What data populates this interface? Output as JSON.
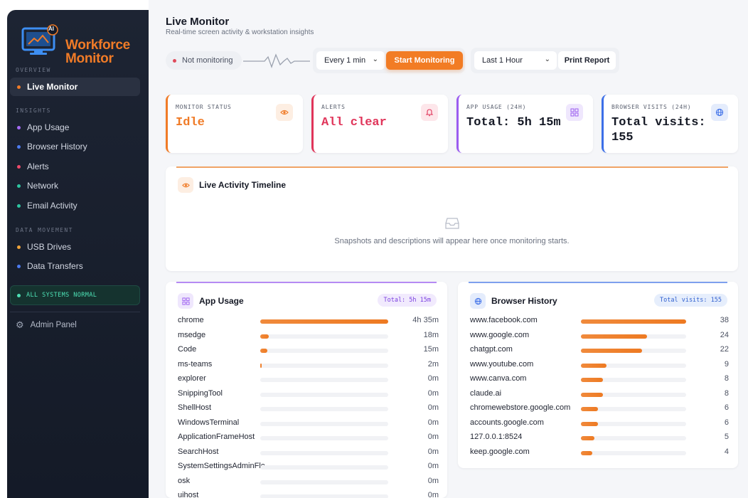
{
  "brand": {
    "line1": "Workforce",
    "line2": "Monitor",
    "badge": "AI"
  },
  "sidebar": {
    "sections": [
      {
        "label": "OVERVIEW"
      },
      {
        "label": "INSIGHTS"
      },
      {
        "label": "DATA MOVEMENT"
      }
    ],
    "items": [
      {
        "label": "Live Monitor",
        "color": "#f07b27",
        "active": true
      },
      {
        "label": "App Usage",
        "color": "#a46bf5"
      },
      {
        "label": "Browser History",
        "color": "#4c7bf0"
      },
      {
        "label": "Alerts",
        "color": "#ee4a6a"
      },
      {
        "label": "Network",
        "color": "#2ec4a0"
      },
      {
        "label": "Email Activity",
        "color": "#2ec4a0"
      },
      {
        "label": "USB Drives",
        "color": "#f0a43a"
      },
      {
        "label": "Data Transfers",
        "color": "#4c7bf0"
      }
    ],
    "system_status": "ALL SYSTEMS NORMAL",
    "admin": "Admin Panel"
  },
  "header": {
    "title": "Live Monitor",
    "subtitle": "Real-time screen activity & workstation insights"
  },
  "toolbar": {
    "status": "Not monitoring",
    "interval": "Every 1 min",
    "start": "Start Monitoring",
    "range": "Last 1 Hour",
    "print": "Print Report"
  },
  "kpis": [
    {
      "label": "MONITOR STATUS",
      "value": "Idle",
      "color": "#f07b27",
      "icon": "eye-icon"
    },
    {
      "label": "ALERTS",
      "value": "All clear",
      "color": "#e0355a",
      "icon": "bell-icon"
    },
    {
      "label": "APP USAGE (24H)",
      "value": "Total: 5h 15m",
      "color": "#9b5cf0",
      "icon": "grid-icon"
    },
    {
      "label": "BROWSER VISITS (24H)",
      "value": "Total visits: 155",
      "color": "#3c6fe8",
      "icon": "globe-icon"
    }
  ],
  "timeline": {
    "title": "Live Activity Timeline",
    "empty": "Snapshots and descriptions will appear here once monitoring starts."
  },
  "app_usage": {
    "title": "App Usage",
    "badge": "Total: 5h 15m",
    "rows": [
      {
        "name": "chrome",
        "value": "4h 35m",
        "pct": 100
      },
      {
        "name": "msedge",
        "value": "18m",
        "pct": 6.5
      },
      {
        "name": "Code",
        "value": "15m",
        "pct": 5.5
      },
      {
        "name": "ms-teams",
        "value": "2m",
        "pct": 1
      },
      {
        "name": "explorer",
        "value": "0m",
        "pct": 0
      },
      {
        "name": "SnippingTool",
        "value": "0m",
        "pct": 0
      },
      {
        "name": "ShellHost",
        "value": "0m",
        "pct": 0
      },
      {
        "name": "WindowsTerminal",
        "value": "0m",
        "pct": 0
      },
      {
        "name": "ApplicationFrameHost",
        "value": "0m",
        "pct": 0
      },
      {
        "name": "SearchHost",
        "value": "0m",
        "pct": 0
      },
      {
        "name": "SystemSettingsAdminFlows",
        "value": "0m",
        "pct": 0
      },
      {
        "name": "osk",
        "value": "0m",
        "pct": 0
      },
      {
        "name": "uihost",
        "value": "0m",
        "pct": 0
      }
    ]
  },
  "browser_history": {
    "title": "Browser History",
    "badge": "Total visits: 155",
    "rows": [
      {
        "name": "www.facebook.com",
        "value": "38",
        "pct": 100
      },
      {
        "name": "www.google.com",
        "value": "24",
        "pct": 63
      },
      {
        "name": "chatgpt.com",
        "value": "22",
        "pct": 58
      },
      {
        "name": "www.youtube.com",
        "value": "9",
        "pct": 24
      },
      {
        "name": "www.canva.com",
        "value": "8",
        "pct": 21
      },
      {
        "name": "claude.ai",
        "value": "8",
        "pct": 21
      },
      {
        "name": "chromewebstore.google.com",
        "value": "6",
        "pct": 16
      },
      {
        "name": "accounts.google.com",
        "value": "6",
        "pct": 16
      },
      {
        "name": "127.0.0.1:8524",
        "value": "5",
        "pct": 13
      },
      {
        "name": "keep.google.com",
        "value": "4",
        "pct": 10.5
      }
    ]
  }
}
